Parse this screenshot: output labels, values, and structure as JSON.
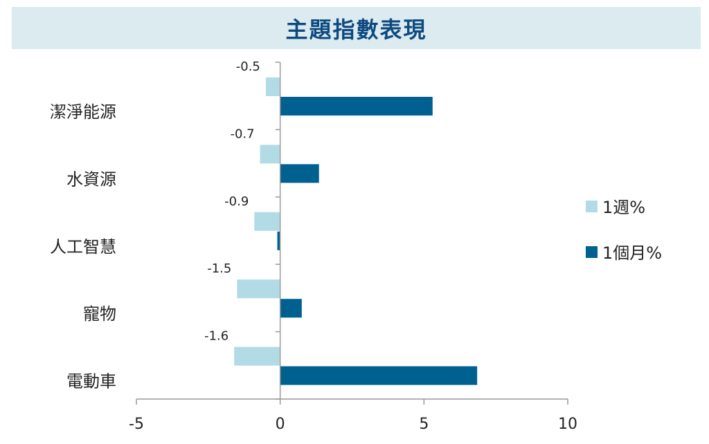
{
  "chart_data": {
    "type": "bar",
    "orientation": "horizontal",
    "title": "主題指數表現",
    "categories": [
      "潔淨能源",
      "水資源",
      "人工智慧",
      "寵物",
      "電動車"
    ],
    "series": [
      {
        "name": "1週%",
        "values": [
          -0.5,
          -0.7,
          -0.9,
          -1.5,
          -1.6
        ],
        "color": "#b3dbe6",
        "data_labels": [
          "-0.5",
          "-0.7",
          "-0.9",
          "-1.5",
          "-1.6"
        ]
      },
      {
        "name": "1個月%",
        "values": [
          5.3,
          1.35,
          -0.1,
          0.75,
          6.85
        ],
        "color": "#00608f"
      }
    ],
    "xlim": [
      -5,
      10
    ],
    "xticks": [
      -5,
      0,
      5,
      10
    ],
    "xtick_labels": [
      "-5",
      "0",
      "5",
      "10"
    ],
    "xlabel": "",
    "ylabel": "",
    "legend_position": "right",
    "grid": false
  }
}
